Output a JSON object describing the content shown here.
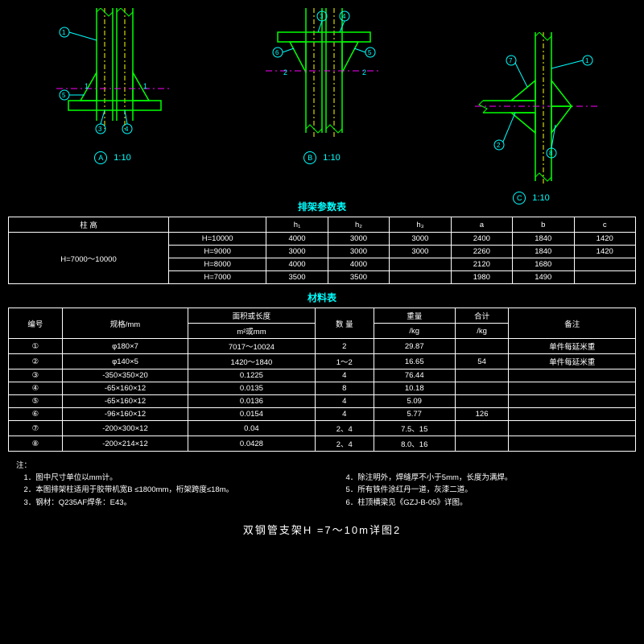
{
  "colors": {
    "bg": "#000000",
    "outline": "#00ff00",
    "cyan": "#00ffff",
    "yellow": "#ffff00",
    "magenta": "#ff00ff",
    "white": "#ffffff"
  },
  "diagrams": [
    {
      "id": "A",
      "scale": "1:10",
      "yOffset": 0
    },
    {
      "id": "B",
      "scale": "1:10",
      "yOffset": 0
    },
    {
      "id": "C",
      "scale": "1:10",
      "yOffset": 30
    }
  ],
  "paramTable": {
    "title": "排架参数表",
    "headers": [
      "柱  高",
      "",
      "h₁",
      "h₂",
      "h₃",
      "a",
      "b",
      "c"
    ],
    "spanLabel": "H=7000～10000",
    "rows": [
      [
        "H=10000",
        "4000",
        "3000",
        "3000",
        "2400",
        "1840",
        "1420"
      ],
      [
        "H=9000",
        "3000",
        "3000",
        "3000",
        "2260",
        "1840",
        "1420"
      ],
      [
        "H=8000",
        "4000",
        "4000",
        "",
        "2120",
        "1680",
        ""
      ],
      [
        "H=7000",
        "3500",
        "3500",
        "",
        "1980",
        "1490",
        ""
      ]
    ]
  },
  "matTable": {
    "title": "材料表",
    "headers": [
      "编号",
      "规格/mm",
      "面积或长度",
      "数 量",
      "重量",
      "合计",
      "备注"
    ],
    "subheaders": [
      "",
      "",
      "m²或mm",
      "",
      "/kg",
      "/kg",
      ""
    ],
    "rows": [
      [
        "①",
        "φ180×7",
        "7017～10024",
        "2",
        "29.87",
        "",
        "单件每延米重"
      ],
      [
        "②",
        "φ140×5",
        "1420～1840",
        "1～2",
        "16.65",
        "54",
        "单件每延米重"
      ],
      [
        "③",
        "-350×350×20",
        "0.1225",
        "4",
        "76.44",
        "",
        ""
      ],
      [
        "④",
        "-65×160×12",
        "0.0135",
        "8",
        "10.18",
        "",
        ""
      ],
      [
        "⑤",
        "-65×160×12",
        "0.0136",
        "4",
        "5.09",
        "",
        ""
      ],
      [
        "⑥",
        "-96×160×12",
        "0.0154",
        "4",
        "5.77",
        "126",
        ""
      ],
      [
        "⑦",
        "-200×300×12",
        "0.04",
        "2、4",
        "7.5、15",
        "",
        ""
      ],
      [
        "⑧",
        "-200×214×12",
        "0.0428",
        "2、4",
        "8.0、16",
        "",
        ""
      ]
    ]
  },
  "notes": {
    "prefix": "注：",
    "left": [
      "1．图中尺寸单位以mm计。",
      "2．本图排架柱适用于胶带机宽B ≤1800mm，桁架跨度≤18m。",
      "3．钢材：Q235AF焊条：E43。"
    ],
    "right": [
      "4．除注明外，焊缝厚不小于5mm，长度为满焊。",
      "5．所有铁件涂红丹一道，灰漆二道。",
      "6．柱顶横梁见《GZJ-B-05》详图。"
    ]
  },
  "footer": "双钢管支架H  =7～10m详图2"
}
